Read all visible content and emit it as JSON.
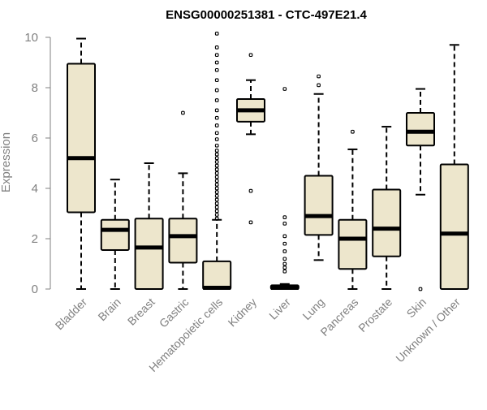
{
  "chart_data": {
    "type": "boxplot",
    "title": "ENSG00000251381 - CTC-497E21.4",
    "xlabel": "",
    "ylabel": "Expression",
    "ylim": [
      0,
      10.3
    ],
    "yticks": [
      0,
      2,
      4,
      6,
      8,
      10
    ],
    "grid": false,
    "box_color": "#ede6cc",
    "line_color": "#000000",
    "text_color": "#808080",
    "categories": [
      "Bladder",
      "Brain",
      "Breast",
      "Gastric",
      "Hematopoietic cells",
      "Kidney",
      "Liver",
      "Lung",
      "Pancreas",
      "Prostate",
      "Skin",
      "Unknown / Other"
    ],
    "boxes": [
      {
        "category": "Bladder",
        "min": 0,
        "q1": 3.05,
        "median": 5.2,
        "q3": 8.95,
        "max": 9.95,
        "outliers": []
      },
      {
        "category": "Brain",
        "min": 0,
        "q1": 1.55,
        "median": 2.35,
        "q3": 2.75,
        "max": 4.35,
        "outliers": []
      },
      {
        "category": "Breast",
        "min": 0,
        "q1": 0,
        "median": 1.65,
        "q3": 2.8,
        "max": 5.0,
        "outliers": []
      },
      {
        "category": "Gastric",
        "min": 0,
        "q1": 1.05,
        "median": 2.1,
        "q3": 2.8,
        "max": 4.6,
        "outliers": [
          7.0
        ]
      },
      {
        "category": "Hematopoietic cells",
        "min": 0,
        "q1": 0,
        "median": 0.05,
        "q3": 1.1,
        "max": 2.75,
        "outliers": [
          2.8,
          2.95,
          3.1,
          3.25,
          3.4,
          3.55,
          3.7,
          3.85,
          4.0,
          4.15,
          4.3,
          4.45,
          4.6,
          4.75,
          4.9,
          5.05,
          5.2,
          5.35,
          5.5,
          5.7,
          5.95,
          6.2,
          6.5,
          6.8,
          7.1,
          7.5,
          7.9,
          8.3,
          8.7,
          9.0,
          9.3,
          9.6,
          10.15
        ]
      },
      {
        "category": "Kidney",
        "min": 6.15,
        "q1": 6.65,
        "median": 7.1,
        "q3": 7.55,
        "max": 8.3,
        "outliers": [
          2.65,
          3.9,
          9.3
        ]
      },
      {
        "category": "Liver",
        "min": 0,
        "q1": 0,
        "median": 0.05,
        "q3": 0.15,
        "max": 0.2,
        "outliers": [
          0.7,
          0.85,
          1.0,
          1.2,
          1.5,
          1.8,
          2.1,
          2.6,
          2.85,
          7.95
        ]
      },
      {
        "category": "Lung",
        "min": 1.15,
        "q1": 2.15,
        "median": 2.9,
        "q3": 4.5,
        "max": 7.75,
        "outliers": [
          8.1,
          8.45
        ]
      },
      {
        "category": "Pancreas",
        "min": 0,
        "q1": 0.8,
        "median": 2.0,
        "q3": 2.75,
        "max": 5.55,
        "outliers": [
          6.25
        ]
      },
      {
        "category": "Prostate",
        "min": 0,
        "q1": 1.3,
        "median": 2.4,
        "q3": 3.95,
        "max": 6.45,
        "outliers": []
      },
      {
        "category": "Skin",
        "min": 3.75,
        "q1": 5.7,
        "median": 6.25,
        "q3": 7.0,
        "max": 7.95,
        "outliers": [
          0.0
        ]
      },
      {
        "category": "Unknown / Other",
        "min": 0,
        "q1": 0,
        "median": 2.2,
        "q3": 4.95,
        "max": 9.7,
        "outliers": []
      }
    ]
  }
}
